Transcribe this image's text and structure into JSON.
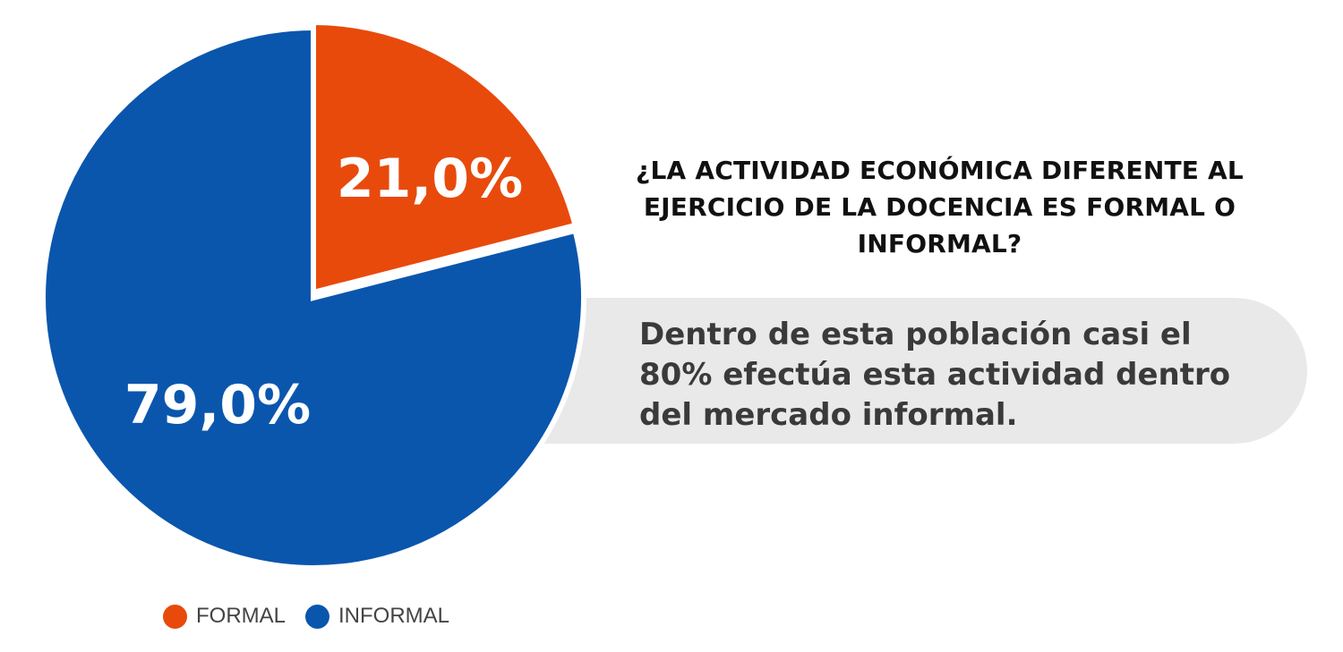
{
  "chart_data": {
    "type": "pie",
    "title": "¿LA ACTIVIDAD ECONÓMICA DIFERENTE AL EJERCICIO DE LA DOCENCIA ES FORMAL O INFORMAL?",
    "categories": [
      "FORMAL",
      "INFORMAL"
    ],
    "values": [
      21.0,
      79.0
    ],
    "data_labels": [
      "21,0%",
      "79,0%"
    ],
    "colors": [
      "#e84a0c",
      "#0a56ad"
    ],
    "legend_position": "bottom-left",
    "annotation": "Dentro de esta población casi el 80% efectúa esta actividad dentro del mercado informal."
  }
}
